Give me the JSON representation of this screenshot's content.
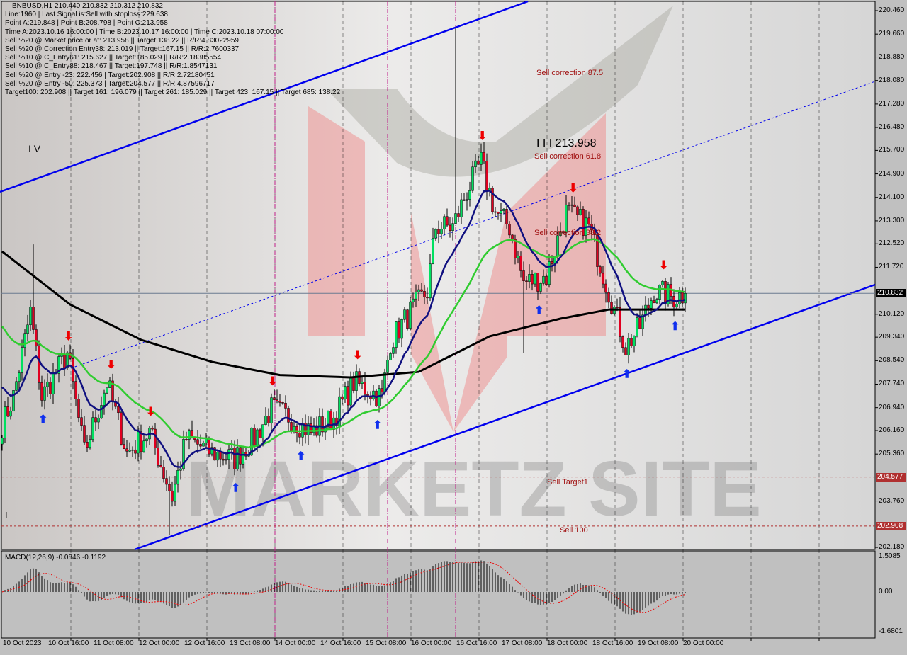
{
  "header": {
    "symbol_line": "BNBUSD,H1  210.440 210.832 210.312 210.832",
    "lines": [
      "Line:1960 | Last Signal is:Sell with stoploss:229.638",
      "Point A:219.848 | Point B:208.798 | Point C:213.958",
      "Time A:2023.10.16 16:00:00 | Time B:2023.10.17 16:00:00 | Time C:2023.10.18 07:00:00",
      "Sell %20 @ Market price or at: 213.958 || Target:138.22 || R/R:4.83022959",
      "Sell %20 @ Correction Entry38: 213.019 || Target:167.15 || R/R:2.7600337",
      "Sell %10 @ C_Entry61: 215.627 || Target:185.029 || R/R:2.18385554",
      "Sell %10 @ C_Entry88: 218.467 || Target:197.748 || R/R:1.8547131",
      "Sell %20 @ Entry -23: 222.456 | Target:202.908 || R/R:2.72180451",
      "Sell %20 @ Entry -50: 225.373 | Target:204.577 || R/R:4.87596717",
      "Target100: 202.908 || Target 161: 196.079 || Target 261: 185.029 || Target 423: 167.15 || Target 685: 138.22"
    ]
  },
  "annotations": {
    "sell_correction_875": "Sell correction 87.5",
    "wave_iii": "I I I 213.958",
    "sell_correction_618": "Sell correction 61.8",
    "sell_correction_382": "Sell correction 38.2",
    "sell_target1": "Sell Target1",
    "sell_100": "Sell 100",
    "wave_iv": "I V",
    "wave_i": "I"
  },
  "watermark": "MARKETZ SITE",
  "macd": {
    "label": "MACD(12,26,9) -0.0846 -0.1192",
    "ticks": [
      "1.5085",
      "0.00",
      "-1.6801"
    ],
    "range": [
      -1.6801,
      1.5085
    ]
  },
  "colors": {
    "background": "#c0c0c0",
    "bull": "#00e060",
    "bear": "#e00020",
    "ma_fast": "#101080",
    "ma_mid": "#30cc30",
    "ma_slow": "#000000",
    "trend": "#0000ee",
    "target": "#b03030",
    "current": "#000000"
  },
  "chart_data": {
    "type": "candlestick",
    "symbol": "BNBUSD",
    "timeframe": "H1",
    "ylim": [
      202.18,
      220.46
    ],
    "y_ticks": [
      "220.460",
      "219.660",
      "218.880",
      "218.080",
      "217.280",
      "216.480",
      "215.700",
      "214.900",
      "214.100",
      "213.300",
      "212.520",
      "211.720",
      "210.120",
      "209.340",
      "208.540",
      "207.740",
      "206.940",
      "206.160",
      "205.360",
      "203.760",
      "202.180"
    ],
    "x_ticks": [
      "10 Oct 2023",
      "10 Oct 16:00",
      "11 Oct 08:00",
      "12 Oct 00:00",
      "12 Oct 16:00",
      "13 Oct 08:00",
      "14 Oct 00:00",
      "14 Oct 16:00",
      "15 Oct 08:00",
      "16 Oct 00:00",
      "16 Oct 16:00",
      "17 Oct 08:00",
      "18 Oct 00:00",
      "18 Oct 16:00",
      "19 Oct 08:00",
      "20 Oct 00:00"
    ],
    "current_price": "210.832",
    "price_tags": [
      "204.577",
      "202.908"
    ],
    "close_path": [
      [
        "2023-10-10 00:00",
        206.35
      ],
      [
        "2023-10-10 04:00",
        207.32
      ],
      [
        "2023-10-10 10:00",
        210.2
      ],
      [
        "2023-10-10 14:00",
        207.3
      ],
      [
        "2023-10-10 23:00",
        208.8
      ],
      [
        "2023-10-11 05:00",
        205.4
      ],
      [
        "2023-10-11 13:00",
        207.8
      ],
      [
        "2023-10-11 20:00",
        205.4
      ],
      [
        "2023-10-12 04:00",
        206.1
      ],
      [
        "2023-10-12 12:00",
        203.9
      ],
      [
        "2023-10-12 17:00",
        205.9
      ],
      [
        "2023-10-13 02:00",
        205.4
      ],
      [
        "2023-10-13 10:00",
        205.2
      ],
      [
        "2023-10-13 17:00",
        205.9
      ],
      [
        "2023-10-13 23:00",
        206.9
      ],
      [
        "2023-10-14 06:00",
        206.6
      ],
      [
        "2023-10-14 13:00",
        206.1
      ],
      [
        "2023-10-14 21:00",
        206.6
      ],
      [
        "2023-10-15 04:00",
        207.8
      ],
      [
        "2023-10-15 14:00",
        207.3
      ],
      [
        "2023-10-15 17:00",
        209.2
      ],
      [
        "2023-10-16 00:00",
        210.2
      ],
      [
        "2023-10-16 06:00",
        210.9
      ],
      [
        "2023-10-16 09:00",
        213.1
      ],
      [
        "2023-10-16 15:00",
        213.1
      ],
      [
        "2023-10-16 20:00",
        214.3
      ],
      [
        "2023-10-17 01:00",
        215.3
      ],
      [
        "2023-10-17 06:00",
        213.6
      ],
      [
        "2023-10-17 11:00",
        213.1
      ],
      [
        "2023-10-17 16:00",
        211.2
      ],
      [
        "2023-10-18 00:00",
        211.4
      ],
      [
        "2023-10-18 07:00",
        213.6
      ],
      [
        "2023-10-18 15:00",
        213.1
      ],
      [
        "2023-10-18 22:00",
        210.9
      ],
      [
        "2023-10-19 04:00",
        209.0
      ],
      [
        "2023-10-19 09:00",
        209.7
      ],
      [
        "2023-10-19 14:00",
        210.9
      ],
      [
        "2023-10-19 21:00",
        210.7
      ],
      [
        "2023-10-20 01:00",
        210.832
      ]
    ],
    "slow_ma_path": [
      [
        "2023-10-10 00:00",
        212.26
      ],
      [
        "2023-10-11 00:00",
        210.45
      ],
      [
        "2023-10-12 01:00",
        209.25
      ],
      [
        "2023-10-13 02:00",
        208.5
      ],
      [
        "2023-10-14 02:00",
        208.05
      ],
      [
        "2023-10-15 03:00",
        207.97
      ],
      [
        "2023-10-16 03:00",
        208.16
      ],
      [
        "2023-10-17 04:00",
        209.37
      ],
      [
        "2023-10-18 05:00",
        209.97
      ],
      [
        "2023-10-18 22:00",
        210.28
      ],
      [
        "2023-10-20 01:00",
        210.28
      ]
    ],
    "spikes": [
      [
        "2023-10-10 11:00",
        212.5
      ],
      [
        "2023-10-16 16:00",
        219.848
      ],
      [
        "2023-10-17 16:00",
        208.798
      ],
      [
        "2023-10-12 11:00",
        202.6
      ]
    ]
  }
}
